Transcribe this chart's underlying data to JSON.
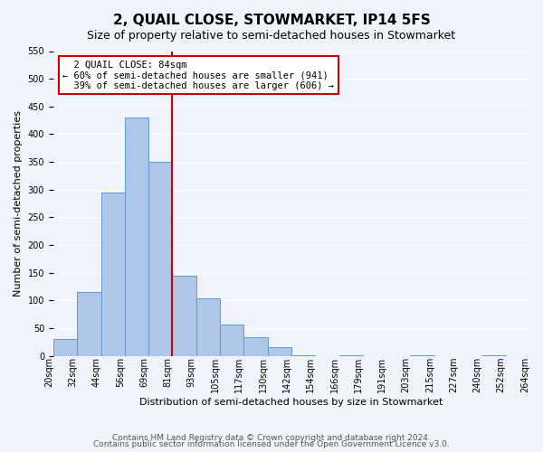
{
  "title": "2, QUAIL CLOSE, STOWMARKET, IP14 5FS",
  "subtitle": "Size of property relative to semi-detached houses in Stowmarket",
  "xlabel": "Distribution of semi-detached houses by size in Stowmarket",
  "ylabel": "Number of semi-detached properties",
  "bin_labels": [
    "20sqm",
    "32sqm",
    "44sqm",
    "56sqm",
    "69sqm",
    "81sqm",
    "93sqm",
    "105sqm",
    "117sqm",
    "130sqm",
    "142sqm",
    "154sqm",
    "166sqm",
    "179sqm",
    "191sqm",
    "203sqm",
    "215sqm",
    "227sqm",
    "240sqm",
    "252sqm",
    "264sqm"
  ],
  "bar_heights": [
    30,
    115,
    295,
    430,
    350,
    145,
    103,
    56,
    34,
    15,
    1,
    0,
    1,
    0,
    0,
    1,
    0,
    0,
    1,
    0
  ],
  "bar_color": "#aec6e8",
  "bar_edge_color": "#5b9bd5",
  "property_line_x": 5,
  "property_label": "2 QUAIL CLOSE: 84sqm",
  "smaller_pct": "60%",
  "smaller_count": 941,
  "larger_pct": "39%",
  "larger_count": 606,
  "line_color": "#cc0000",
  "annotation_box_edge_color": "#cc0000",
  "ylim": [
    0,
    550
  ],
  "yticks": [
    0,
    50,
    100,
    150,
    200,
    250,
    300,
    350,
    400,
    450,
    500,
    550
  ],
  "footer1": "Contains HM Land Registry data © Crown copyright and database right 2024.",
  "footer2": "Contains public sector information licensed under the Open Government Licence v3.0.",
  "bg_color": "#f0f4fa",
  "grid_color": "#ffffff",
  "title_fontsize": 11,
  "subtitle_fontsize": 9,
  "axis_label_fontsize": 8,
  "tick_fontsize": 7,
  "footer_fontsize": 6.5
}
